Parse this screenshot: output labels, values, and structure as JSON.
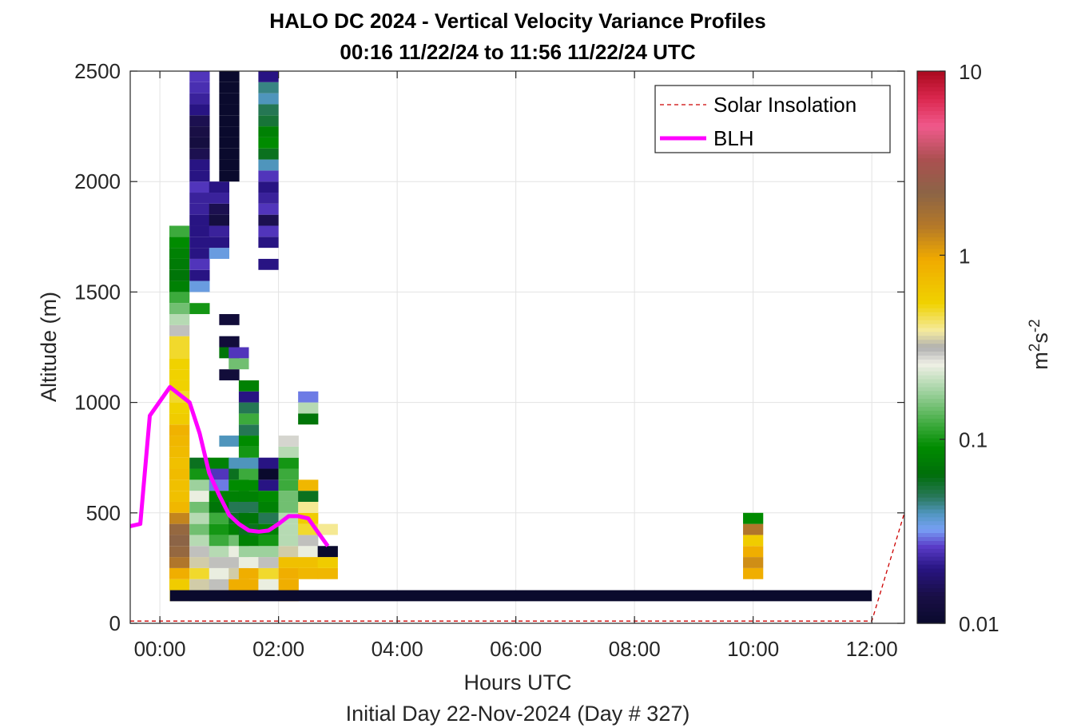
{
  "chart_data": {
    "type": "heatmap",
    "title": "HALO DC 2024 - Vertical Velocity Variance Profiles",
    "subtitle": "00:16 11/22/24 to 11:56 11/22/24  UTC",
    "xlabel": "Hours UTC",
    "xlabel2": "Initial Day 22-Nov-2024 (Day # 327)",
    "ylabel": "Altitude (m)",
    "xlim": [
      -0.5,
      12.55
    ],
    "ylim": [
      0,
      2500
    ],
    "x_ticks": [
      0,
      2,
      4,
      6,
      8,
      10,
      12
    ],
    "x_tick_labels": [
      "00:00",
      "02:00",
      "04:00",
      "06:00",
      "08:00",
      "10:00",
      "12:00"
    ],
    "y_ticks": [
      0,
      500,
      1000,
      1500,
      2000,
      2500
    ],
    "y_tick_labels": [
      "0",
      "500",
      "1000",
      "1500",
      "2000",
      "2500"
    ],
    "grid": true,
    "colorbar": {
      "label_base": "m",
      "label_exp1": "2",
      "label_mid": "s",
      "label_exp2": "-2",
      "scale": "log",
      "range": [
        0.01,
        10
      ],
      "ticks": [
        0.01,
        0.1,
        1,
        10
      ],
      "tick_labels": [
        "0.01",
        "0.1",
        "1",
        "10"
      ]
    },
    "legend": {
      "position": "top-right",
      "entries": [
        {
          "label": "Solar Insolation",
          "color": "#cc0000",
          "style": "dashed"
        },
        {
          "label": "BLH",
          "color": "#ff00ff",
          "style": "solid"
        }
      ]
    },
    "series": [
      {
        "name": "BLH",
        "color": "#ff00ff",
        "x": [
          -0.5,
          -0.33,
          -0.17,
          0.17,
          0.5,
          0.67,
          0.83,
          1.0,
          1.17,
          1.33,
          1.5,
          1.67,
          1.83,
          2.0,
          2.17,
          2.33,
          2.5,
          2.67,
          2.83
        ],
        "y": [
          440,
          450,
          940,
          1070,
          1000,
          860,
          680,
          580,
          490,
          450,
          420,
          415,
          420,
          450,
          485,
          485,
          475,
          410,
          350
        ]
      },
      {
        "name": "Solar Insolation",
        "color": "#cc0000",
        "x": [
          -0.5,
          12.0,
          12.55
        ],
        "y": [
          10,
          10,
          500
        ]
      }
    ],
    "heatmap_cols": [
      {
        "x": 0.33,
        "cells": [
          [
            125,
            0.4
          ],
          [
            175,
            0.6
          ],
          [
            225,
            0.9
          ],
          [
            275,
            1.5
          ],
          [
            325,
            2.0
          ],
          [
            375,
            2.2
          ],
          [
            425,
            2.0
          ],
          [
            475,
            1.3
          ],
          [
            525,
            0.8
          ],
          [
            575,
            0.7
          ],
          [
            625,
            0.7
          ],
          [
            675,
            0.75
          ],
          [
            725,
            0.7
          ],
          [
            775,
            0.75
          ],
          [
            825,
            0.8
          ],
          [
            875,
            0.85
          ],
          [
            925,
            0.6
          ],
          [
            975,
            0.55
          ],
          [
            1025,
            0.5
          ],
          [
            1075,
            0.55
          ],
          [
            1125,
            0.55
          ],
          [
            1175,
            0.55
          ],
          [
            1225,
            0.5
          ],
          [
            1275,
            0.5
          ],
          [
            1325,
            0.3
          ],
          [
            1375,
            0.2
          ],
          [
            1425,
            0.15
          ],
          [
            1475,
            0.12
          ],
          [
            1525,
            0.08
          ],
          [
            1575,
            0.07
          ],
          [
            1625,
            0.075
          ],
          [
            1675,
            0.08
          ],
          [
            1725,
            0.09
          ],
          [
            1775,
            0.12
          ]
        ]
      },
      {
        "x": 0.67,
        "cells": [
          [
            125,
            0.15
          ],
          [
            175,
            0.35
          ],
          [
            225,
            0.5
          ],
          [
            275,
            0.35
          ],
          [
            325,
            0.3
          ],
          [
            375,
            0.2
          ],
          [
            425,
            0.15
          ],
          [
            475,
            0.2
          ],
          [
            525,
            0.15
          ],
          [
            575,
            0.25
          ],
          [
            625,
            0.18
          ],
          [
            675,
            0.1
          ],
          [
            725,
            0.06
          ],
          [
            1425,
            0.1
          ],
          [
            1525,
            0.035
          ],
          [
            1575,
            0.02
          ],
          [
            1625,
            0.025
          ],
          [
            1675,
            0.02
          ],
          [
            1725,
            0.02
          ],
          [
            1775,
            0.02
          ],
          [
            1825,
            0.02
          ],
          [
            1875,
            0.022
          ],
          [
            1925,
            0.022
          ],
          [
            1975,
            0.025
          ],
          [
            2025,
            0.02
          ],
          [
            2075,
            0.02
          ],
          [
            2125,
            0.015
          ],
          [
            2175,
            0.013
          ],
          [
            2225,
            0.014
          ],
          [
            2275,
            0.015
          ],
          [
            2325,
            0.02
          ],
          [
            2375,
            0.022
          ],
          [
            2425,
            0.024
          ],
          [
            2475,
            0.025
          ]
        ]
      },
      {
        "x": 1.0,
        "cells": [
          [
            125,
            0.6
          ],
          [
            175,
            0.3
          ],
          [
            225,
            0.25
          ],
          [
            275,
            0.3
          ],
          [
            325,
            0.2
          ],
          [
            375,
            0.12
          ],
          [
            425,
            0.1
          ],
          [
            475,
            0.12
          ],
          [
            525,
            0.07
          ],
          [
            575,
            0.08
          ],
          [
            625,
            0.03
          ],
          [
            675,
            0.025
          ],
          [
            725,
            0.08
          ],
          [
            1675,
            0.035
          ],
          [
            1725,
            0.02
          ],
          [
            1775,
            0.022
          ],
          [
            1825,
            0.013
          ],
          [
            1875,
            0.015
          ],
          [
            1925,
            0.022
          ],
          [
            1975,
            0.02
          ]
        ]
      },
      {
        "x": 1.17,
        "cells": [
          [
            825,
            0.04
          ],
          [
            1125,
            0.012
          ],
          [
            1225,
            0.07
          ],
          [
            1275,
            0.012
          ],
          [
            1375,
            0.012
          ],
          [
            2025,
            0.01
          ],
          [
            2075,
            0.01
          ],
          [
            2125,
            0.01
          ],
          [
            2175,
            0.01
          ],
          [
            2225,
            0.01
          ],
          [
            2275,
            0.01
          ],
          [
            2325,
            0.01
          ],
          [
            2375,
            0.01
          ],
          [
            2425,
            0.01
          ],
          [
            2475,
            0.01
          ]
        ]
      },
      {
        "x": 1.33,
        "cells": [
          [
            125,
            0.9
          ],
          [
            175,
            0.9
          ],
          [
            225,
            0.35
          ],
          [
            275,
            0.3
          ],
          [
            325,
            0.25
          ],
          [
            375,
            0.15
          ],
          [
            425,
            0.08
          ],
          [
            475,
            0.06
          ],
          [
            525,
            0.05
          ],
          [
            575,
            0.08
          ],
          [
            625,
            0.09
          ],
          [
            675,
            0.06
          ],
          [
            725,
            0.04
          ],
          [
            1175,
            0.15
          ],
          [
            1225,
            0.025
          ]
        ]
      },
      {
        "x": 1.5,
        "cells": [
          [
            125,
            0.9
          ],
          [
            175,
            0.9
          ],
          [
            225,
            0.9
          ],
          [
            275,
            0.25
          ],
          [
            325,
            0.18
          ],
          [
            375,
            0.08
          ],
          [
            425,
            0.06
          ],
          [
            475,
            0.07
          ],
          [
            525,
            0.05
          ],
          [
            575,
            0.08
          ],
          [
            625,
            0.09
          ],
          [
            675,
            0.12
          ],
          [
            725,
            0.04
          ],
          [
            775,
            0.1
          ],
          [
            825,
            0.09
          ],
          [
            875,
            0.05
          ],
          [
            925,
            0.12
          ],
          [
            975,
            0.05
          ],
          [
            1025,
            0.02
          ],
          [
            1075,
            0.08
          ]
        ]
      },
      {
        "x": 1.83,
        "cells": [
          [
            125,
            0.3
          ],
          [
            175,
            0.25
          ],
          [
            225,
            0.5
          ],
          [
            275,
            0.3
          ],
          [
            325,
            0.18
          ],
          [
            375,
            0.1
          ],
          [
            425,
            0.08
          ],
          [
            475,
            0.05
          ],
          [
            525,
            0.08
          ],
          [
            575,
            0.09
          ],
          [
            625,
            0.02
          ],
          [
            675,
            0.01
          ],
          [
            725,
            0.02
          ],
          [
            1625,
            0.02
          ],
          [
            1725,
            0.02
          ],
          [
            1775,
            0.025
          ],
          [
            1825,
            0.015
          ],
          [
            1875,
            0.025
          ],
          [
            1925,
            0.022
          ],
          [
            1975,
            0.02
          ],
          [
            2025,
            0.025
          ],
          [
            2075,
            0.04
          ],
          [
            2125,
            0.06
          ],
          [
            2175,
            0.09
          ],
          [
            2225,
            0.08
          ],
          [
            2275,
            0.055
          ],
          [
            2325,
            0.05
          ],
          [
            2375,
            0.04
          ],
          [
            2425,
            0.045
          ],
          [
            2475,
            0.02
          ],
          [
            2525,
            0.01
          ]
        ]
      },
      {
        "x": 2.17,
        "cells": [
          [
            125,
            0.9
          ],
          [
            175,
            0.9
          ],
          [
            225,
            0.9
          ],
          [
            275,
            0.7
          ],
          [
            325,
            0.35
          ],
          [
            375,
            0.2
          ],
          [
            425,
            0.2
          ],
          [
            475,
            0.2
          ],
          [
            525,
            0.15
          ],
          [
            575,
            0.15
          ],
          [
            625,
            0.12
          ],
          [
            675,
            0.12
          ],
          [
            725,
            0.1
          ],
          [
            775,
            0.2
          ],
          [
            825,
            0.28
          ]
        ]
      },
      {
        "x": 2.5,
        "cells": [
          [
            225,
            0.8
          ],
          [
            275,
            0.7
          ],
          [
            325,
            0.25
          ],
          [
            375,
            0.3
          ],
          [
            425,
            0.5
          ],
          [
            475,
            0.6
          ],
          [
            525,
            0.4
          ],
          [
            575,
            0.06
          ],
          [
            625,
            0.8
          ],
          [
            925,
            0.07
          ],
          [
            975,
            0.2
          ],
          [
            1025,
            0.03
          ]
        ]
      },
      {
        "x": 2.83,
        "cells": [
          [
            225,
            0.8
          ],
          [
            275,
            0.6
          ],
          [
            325,
            0.01
          ],
          [
            425,
            0.4
          ]
        ]
      },
      {
        "x": 10.0,
        "cells": [
          [
            225,
            0.9
          ],
          [
            275,
            1.2
          ],
          [
            325,
            0.9
          ],
          [
            375,
            0.6
          ],
          [
            425,
            1.5
          ],
          [
            475,
            0.09
          ]
        ]
      }
    ],
    "ground_band": {
      "x_start": 0.17,
      "x_end": 12.0,
      "y_bottom": 100,
      "y_top": 150,
      "value": 0.01
    }
  }
}
